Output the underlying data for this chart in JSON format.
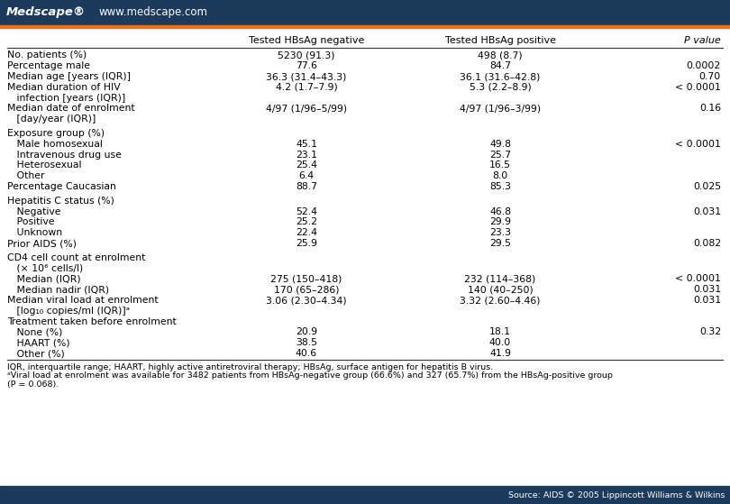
{
  "header_bg": "#1b3a5c",
  "orange_line": "#e8721a",
  "bottom_bar_bg": "#1b3a5c",
  "medscape_text": "Medscape®",
  "url_text": "www.medscape.com",
  "source_text": "Source: AIDS © 2005 Lippincott Williams & Wilkins",
  "col_headers": [
    "",
    "Tested HBsAg negative",
    "Tested HBsAg positive",
    "P value"
  ],
  "footnote1": "IQR, interquartile range; HAART, highly active antiretroviral therapy; HBsAg, surface antigen for hepatitis B virus.",
  "footnote2": "ᵃViral load at enrolment was available for 3482 patients from HBsAg-negative group (66.6%) and 327 (65.7%) from the HBsAg-positive group",
  "footnote3": "(P = 0.068).",
  "rows": [
    {
      "label": "No. patients (%)",
      "col1": "5230 (91.3)",
      "col2": "498 (8.7)",
      "col3": "",
      "spacer_before": false
    },
    {
      "label": "Percentage male",
      "col1": "77.6",
      "col2": "84.7",
      "col3": "0.0002",
      "spacer_before": false
    },
    {
      "label": "Median age [years (IQR)]",
      "col1": "36.3 (31.4–43.3)",
      "col2": "36.1 (31.6–42.8)",
      "col3": "0.70",
      "spacer_before": false
    },
    {
      "label": "Median duration of HIV",
      "col1": "4.2 (1.7–7.9)",
      "col2": "5.3 (2.2–8.9)",
      "col3": "< 0.0001",
      "spacer_before": false
    },
    {
      "label": "   infection [years (IQR)]",
      "col1": "",
      "col2": "",
      "col3": "",
      "spacer_before": false
    },
    {
      "label": "Median date of enrolment",
      "col1": "4/97 (1/96–5/99)",
      "col2": "4/97 (1/96–3/99)",
      "col3": "0.16",
      "spacer_before": false
    },
    {
      "label": "   [day/year (IQR)]",
      "col1": "",
      "col2": "",
      "col3": "",
      "spacer_before": false
    },
    {
      "label": "Exposure group (%)",
      "col1": "",
      "col2": "",
      "col3": "",
      "spacer_before": true
    },
    {
      "label": "   Male homosexual",
      "col1": "45.1",
      "col2": "49.8",
      "col3": "< 0.0001",
      "spacer_before": false
    },
    {
      "label": "   Intravenous drug use",
      "col1": "23.1",
      "col2": "25.7",
      "col3": "",
      "spacer_before": false
    },
    {
      "label": "   Heterosexual",
      "col1": "25.4",
      "col2": "16.5",
      "col3": "",
      "spacer_before": false
    },
    {
      "label": "   Other",
      "col1": "6.4",
      "col2": "8.0",
      "col3": "",
      "spacer_before": false
    },
    {
      "label": "Percentage Caucasian",
      "col1": "88.7",
      "col2": "85.3",
      "col3": "0.025",
      "spacer_before": false
    },
    {
      "label": "Hepatitis C status (%)",
      "col1": "",
      "col2": "",
      "col3": "",
      "spacer_before": true
    },
    {
      "label": "   Negative",
      "col1": "52.4",
      "col2": "46.8",
      "col3": "0.031",
      "spacer_before": false
    },
    {
      "label": "   Positive",
      "col1": "25.2",
      "col2": "29.9",
      "col3": "",
      "spacer_before": false
    },
    {
      "label": "   Unknown",
      "col1": "22.4",
      "col2": "23.3",
      "col3": "",
      "spacer_before": false
    },
    {
      "label": "Prior AIDS (%)",
      "col1": "25.9",
      "col2": "29.5",
      "col3": "0.082",
      "spacer_before": false
    },
    {
      "label": "CD4 cell count at enrolment",
      "col1": "",
      "col2": "",
      "col3": "",
      "spacer_before": true
    },
    {
      "label": "   (× 10⁶ cells/l)",
      "col1": "",
      "col2": "",
      "col3": "",
      "spacer_before": false
    },
    {
      "label": "   Median (IQR)",
      "col1": "275 (150–418)",
      "col2": "232 (114–368)",
      "col3": "< 0.0001",
      "spacer_before": false
    },
    {
      "label": "   Median nadir (IQR)",
      "col1": "170 (65–286)",
      "col2": "140 (40–250)",
      "col3": "0.031",
      "spacer_before": false
    },
    {
      "label": "Median viral load at enrolment",
      "col1": "3.06 (2.30–4.34)",
      "col2": "3.32 (2.60–4.46)",
      "col3": "0.031",
      "spacer_before": false
    },
    {
      "label": "   [log₁₀ copies/ml (IQR)]ᵃ",
      "col1": "",
      "col2": "",
      "col3": "",
      "spacer_before": false
    },
    {
      "label": "Treatment taken before enrolment",
      "col1": "",
      "col2": "",
      "col3": "",
      "spacer_before": false
    },
    {
      "label": "   None (%)",
      "col1": "20.9",
      "col2": "18.1",
      "col3": "0.32",
      "spacer_before": false
    },
    {
      "label": "   HAART (%)",
      "col1": "38.5",
      "col2": "40.0",
      "col3": "",
      "spacer_before": false
    },
    {
      "label": "   Other (%)",
      "col1": "40.6",
      "col2": "41.9",
      "col3": "",
      "spacer_before": false
    }
  ]
}
